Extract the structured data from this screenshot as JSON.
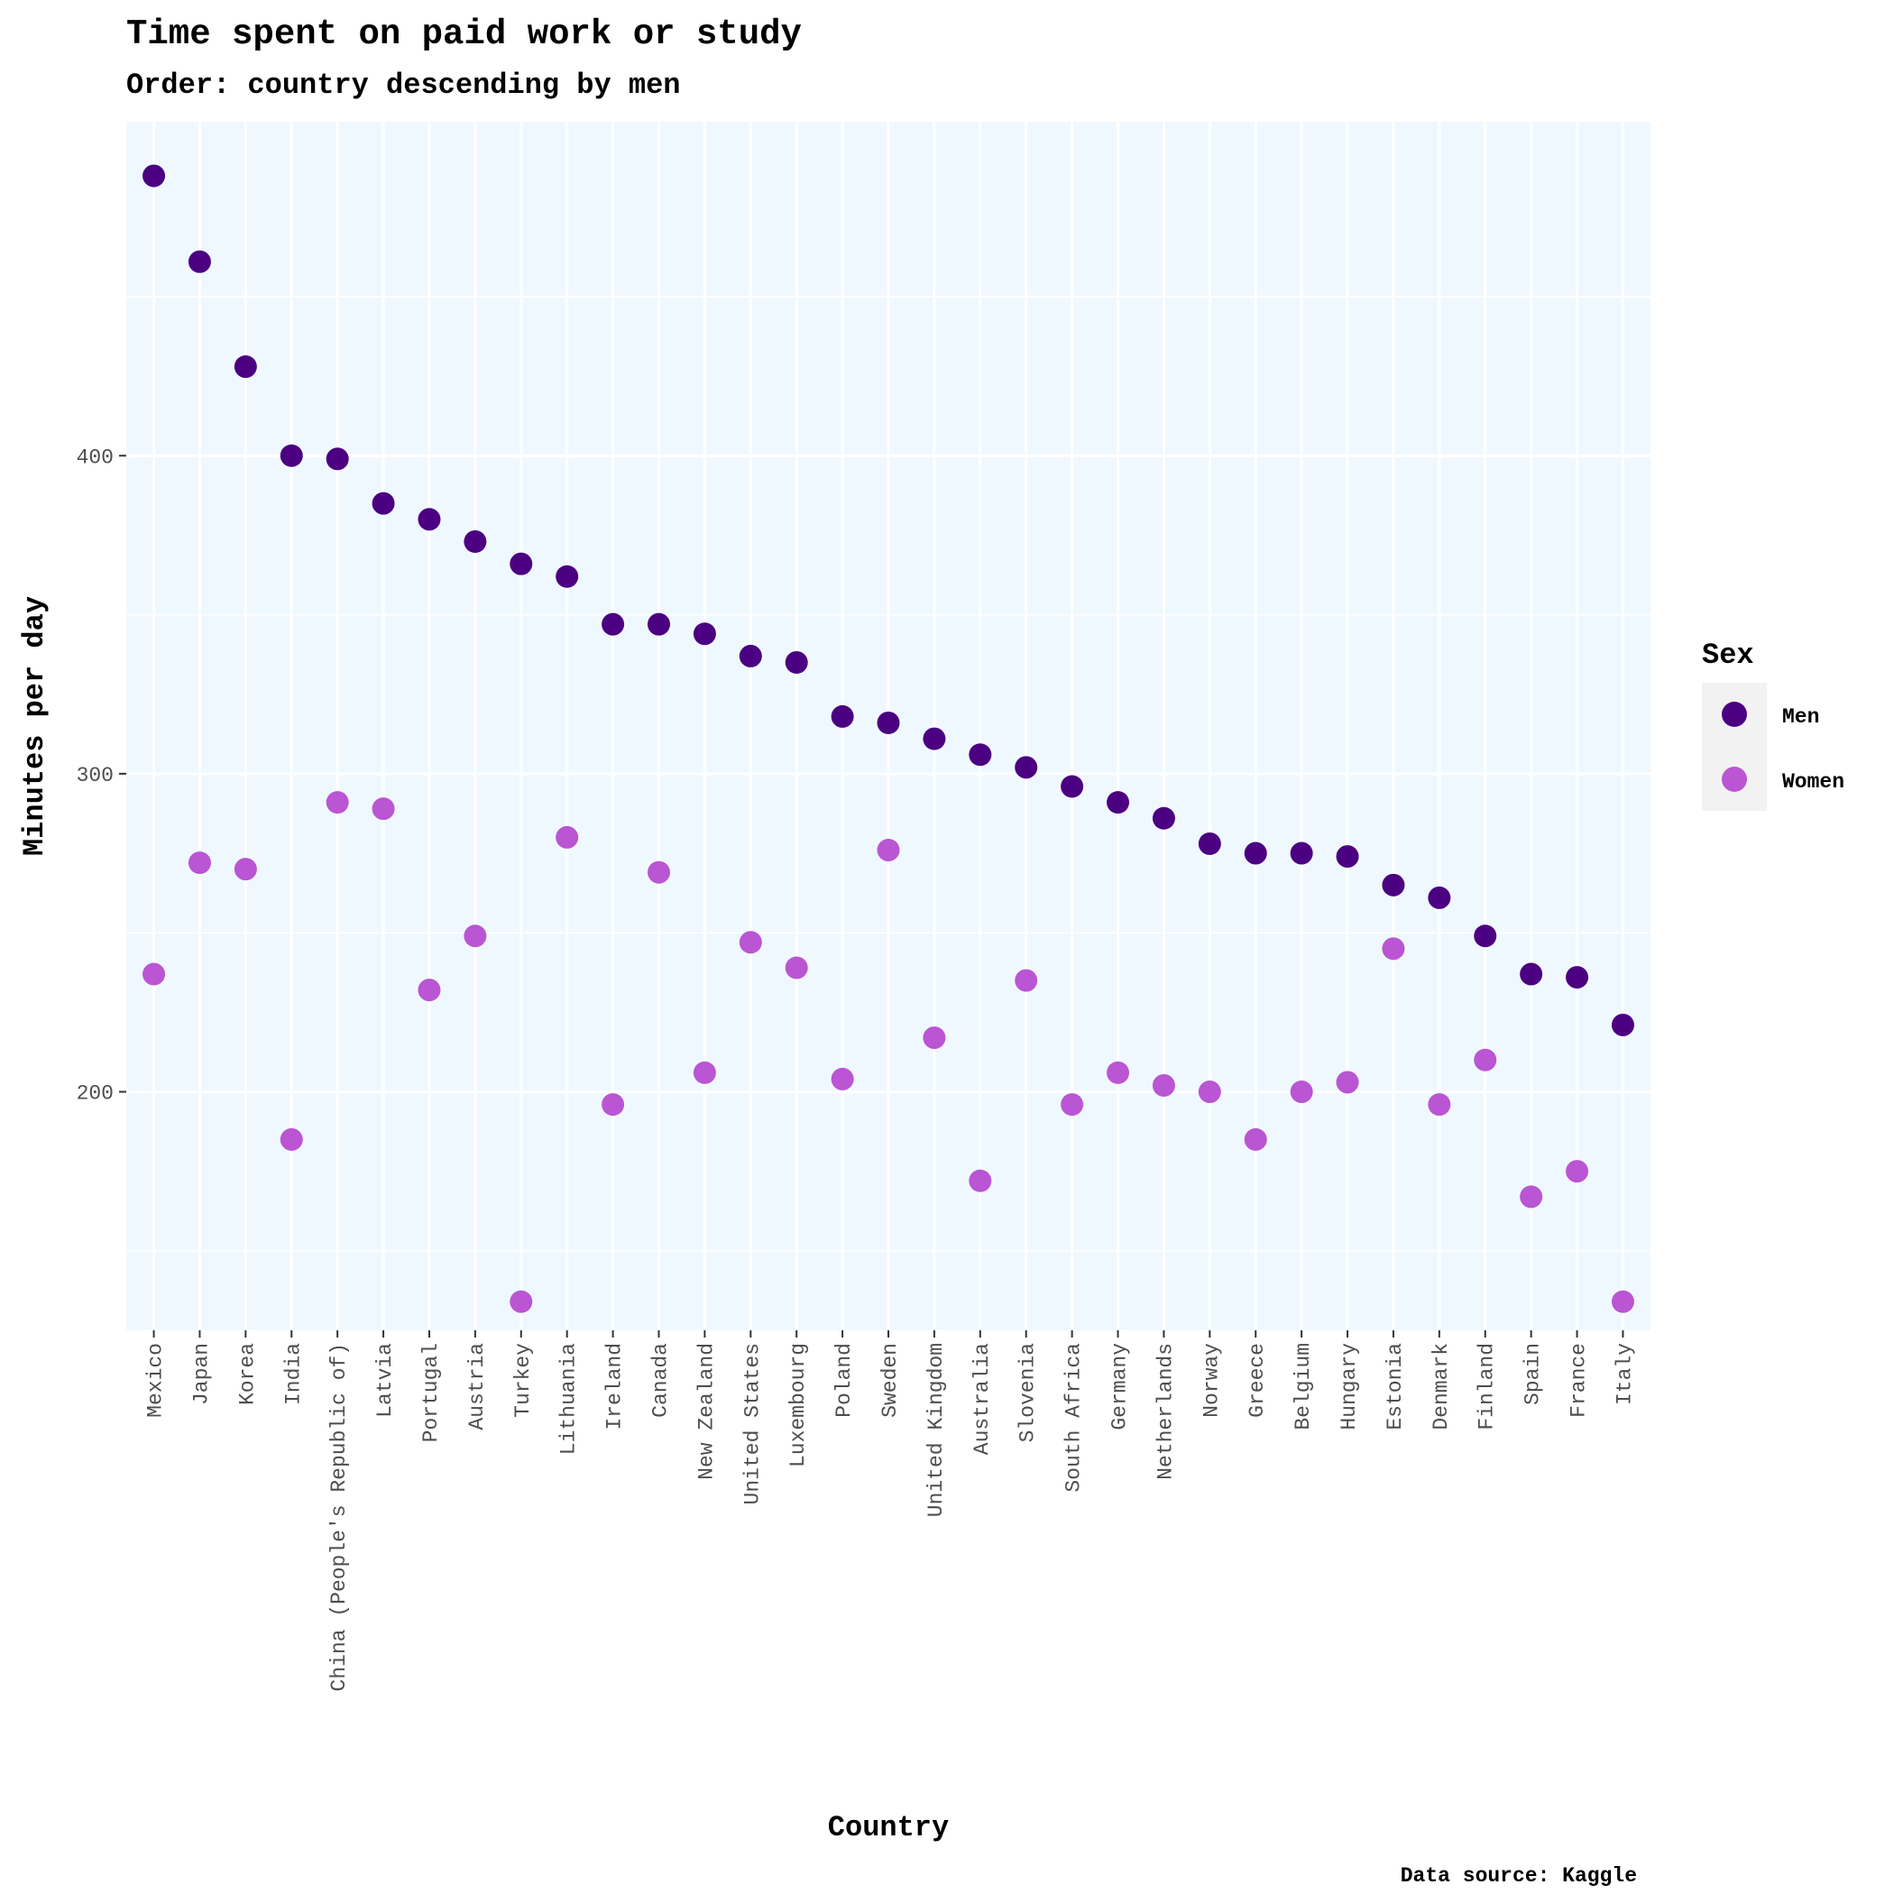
{
  "chart_data": {
    "type": "scatter",
    "title": "Time spent on paid work or study",
    "subtitle": "Order: country descending by men",
    "xlabel": "Country",
    "ylabel": "Minutes per day",
    "caption": "Data source: Kaggle",
    "ylim": [
      125,
      505
    ],
    "yticks": [
      200,
      300,
      400
    ],
    "grid": true,
    "legend": {
      "title": "Sex",
      "position": "right"
    },
    "categories": [
      "Mexico",
      "Japan",
      "Korea",
      "India",
      "China (People's Republic of)",
      "Latvia",
      "Portugal",
      "Austria",
      "Turkey",
      "Lithuania",
      "Ireland",
      "Canada",
      "New Zealand",
      "United States",
      "Luxembourg",
      "Poland",
      "Sweden",
      "United Kingdom",
      "Australia",
      "Slovenia",
      "South Africa",
      "Germany",
      "Netherlands",
      "Norway",
      "Greece",
      "Belgium",
      "Hungary",
      "Estonia",
      "Denmark",
      "Finland",
      "Spain",
      "France",
      "Italy"
    ],
    "series": [
      {
        "name": "Men",
        "color": "#4b0082",
        "values": [
          488,
          461,
          428,
          400,
          399,
          385,
          380,
          373,
          366,
          362,
          347,
          347,
          344,
          337,
          335,
          318,
          316,
          311,
          306,
          302,
          296,
          291,
          286,
          278,
          275,
          275,
          274,
          265,
          261,
          249,
          237,
          236,
          221
        ]
      },
      {
        "name": "Women",
        "color": "#ba55d3",
        "values": [
          237,
          272,
          270,
          185,
          291,
          289,
          232,
          249,
          134,
          280,
          196,
          269,
          206,
          247,
          239,
          204,
          276,
          217,
          172,
          235,
          196,
          206,
          202,
          200,
          185,
          200,
          203,
          245,
          196,
          210,
          167,
          175,
          134
        ]
      }
    ]
  }
}
